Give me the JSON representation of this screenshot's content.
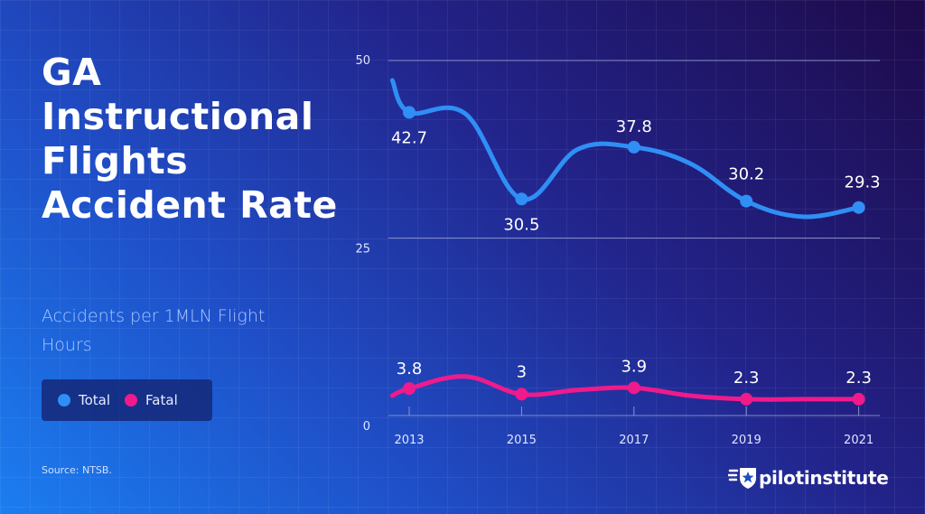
{
  "title": "GA Instructional Flights Accident Rate",
  "subtitle": "Accidents per 1MLN Flight Hours",
  "legend": {
    "total_label": "Total",
    "fatal_label": "Fatal"
  },
  "source": "Source: NTSB.",
  "brand": "pilotinstitute",
  "colors": {
    "total": "#2f8ff5",
    "fatal": "#f01a8c",
    "gridline": "#8a95c8"
  },
  "chart_data": {
    "type": "line",
    "x": [
      2012.7,
      2013,
      2014,
      2015,
      2016,
      2017,
      2018,
      2019,
      2020,
      2021
    ],
    "x_ticks": [
      "2013",
      "2015",
      "2017",
      "2019",
      "2021"
    ],
    "y_ticks": [
      "0",
      "25",
      "50"
    ],
    "ylim": [
      0,
      50
    ],
    "series": [
      {
        "name": "Total",
        "values": [
          47.2,
          42.7,
          42.5,
          30.5,
          37.5,
          37.8,
          35.5,
          30.2,
          28.0,
          29.3
        ],
        "labels": [
          {
            "x": 2013,
            "text": "42.7"
          },
          {
            "x": 2015,
            "text": "30.5"
          },
          {
            "x": 2017,
            "text": "37.8"
          },
          {
            "x": 2019,
            "text": "30.2"
          },
          {
            "x": 2021,
            "text": "29.3"
          }
        ]
      },
      {
        "name": "Fatal",
        "values": [
          2.8,
          3.8,
          5.5,
          3.0,
          3.6,
          3.9,
          2.8,
          2.3,
          2.3,
          2.3
        ],
        "labels": [
          {
            "x": 2013,
            "text": "3.8"
          },
          {
            "x": 2015,
            "text": "3"
          },
          {
            "x": 2017,
            "text": "3.9"
          },
          {
            "x": 2019,
            "text": "2.3"
          },
          {
            "x": 2021,
            "text": "2.3"
          }
        ]
      }
    ]
  }
}
